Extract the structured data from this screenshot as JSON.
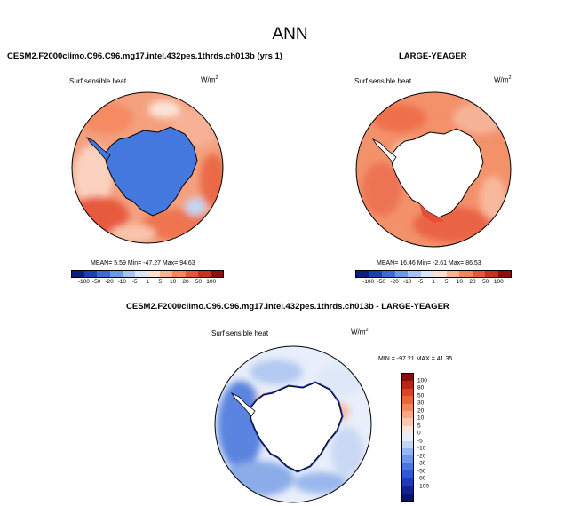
{
  "main_title": "ANN",
  "panels": [
    {
      "title": "CESM2.F2000climo.C96.C96.mg17.intel.432pes.1thrds.ch013b (yrs 1)",
      "variable": "Surf sensible heat",
      "units": "W/m",
      "units_sup": "2",
      "stats": "MEAN=  5.59  Min= -47.27  Max= 94.63"
    },
    {
      "title": "LARGE-YEAGER",
      "variable": "Surf sensible heat",
      "units": "W/m",
      "units_sup": "2",
      "stats": "MEAN= 16.46  Min=  -2.61  Max= 86.53"
    },
    {
      "title": "CESM2.F2000climo.C96.C96.mg17.intel.432pes.1thrds.ch013b - LARGE-YEAGER",
      "variable": "Surf sensible heat",
      "units": "W/m",
      "units_sup": "2",
      "stats": "MIN = -97.21 MAX =  41.35"
    }
  ],
  "colorbar_top": {
    "colors": [
      "#0a1e7a",
      "#1d3fb5",
      "#3a6bd6",
      "#6a9ae6",
      "#a6c4ef",
      "#d9e6f7",
      "#fde0d0",
      "#f9b394",
      "#f3845c",
      "#e6573a",
      "#c8301f",
      "#8f0f0f"
    ],
    "ticks": [
      "-100",
      "-50",
      "-20",
      "-10",
      "-5",
      "1",
      "5",
      "10",
      "20",
      "50",
      "100"
    ]
  },
  "colorbar_diff": {
    "colors": [
      "#0a1466",
      "#13238f",
      "#1f3cbf",
      "#2f57d8",
      "#4a76e3",
      "#6e96ec",
      "#97b6f1",
      "#c2d5f7",
      "#e6eefb",
      "#fde7dc",
      "#fbc8b0",
      "#f8a984",
      "#f2875e",
      "#ea643e",
      "#da4328",
      "#bc2417",
      "#8b0a0a"
    ],
    "ticks": [
      "100",
      "80",
      "50",
      "30",
      "20",
      "10",
      "5",
      "0",
      "-5",
      "-10",
      "-20",
      "-30",
      "-50",
      "-80",
      "-100"
    ]
  }
}
